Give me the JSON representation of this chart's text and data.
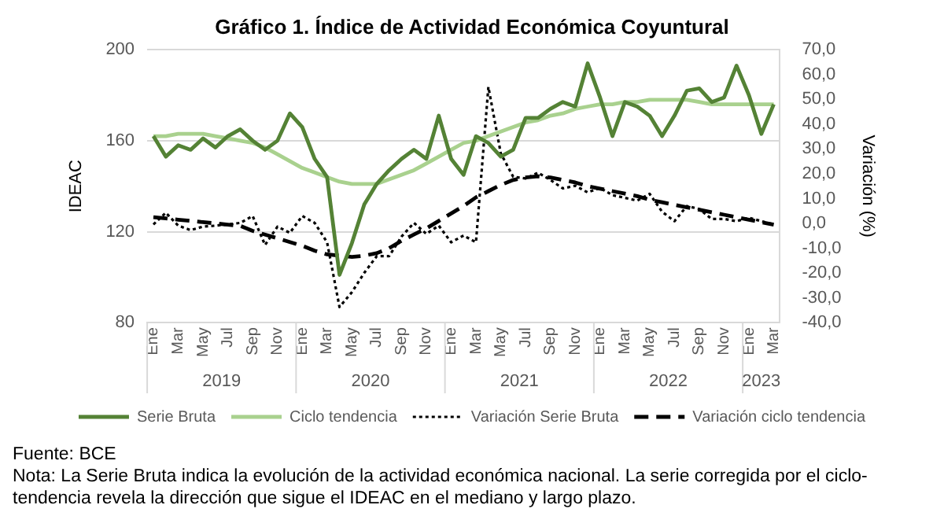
{
  "chart_data": {
    "type": "line",
    "title": "Gráfico 1. Índice de Actividad Económica Coyuntural",
    "ylabel": "IDEAC",
    "y2label": "Variación (%)",
    "categories": [
      "Ene",
      null,
      "Mar",
      null,
      "May",
      null,
      "Jul",
      null,
      "Sep",
      null,
      "Nov",
      null,
      "Ene",
      null,
      "Mar",
      null,
      "May",
      null,
      "Jul",
      null,
      "Sep",
      null,
      "Nov",
      null,
      "Ene",
      null,
      "Mar",
      null,
      "May",
      null,
      "Jul",
      null,
      "Sep",
      null,
      "Nov",
      null,
      "Ene",
      null,
      "Mar",
      null,
      "May",
      null,
      "Jul",
      null,
      "Sep",
      null,
      "Nov",
      null,
      "Ene",
      null,
      "Mar"
    ],
    "series": [
      {
        "name": "Serie Bruta",
        "color": "#548235",
        "line_style": "solid",
        "values": [
          162,
          153,
          158,
          156,
          161,
          157,
          162,
          165,
          160,
          156,
          160,
          172,
          166,
          152,
          144,
          101,
          115,
          132,
          141,
          147,
          152,
          156,
          152,
          171,
          152,
          145,
          162,
          159,
          153,
          156,
          170,
          170,
          174,
          177,
          175,
          194,
          179,
          162,
          177,
          175,
          171,
          162,
          171,
          182,
          183,
          177,
          179,
          193,
          180,
          163,
          176
        ]
      },
      {
        "name": "Ciclo tendencia",
        "color": "#a9d18e",
        "line_style": "solid",
        "values": [
          162,
          162,
          163,
          163,
          163,
          162,
          161,
          160,
          159,
          157,
          154,
          151,
          148,
          146,
          144,
          142,
          141,
          141,
          141,
          143,
          145,
          147,
          150,
          153,
          156,
          159,
          160,
          162,
          164,
          166,
          168,
          169,
          171,
          172,
          174,
          175,
          176,
          176,
          177,
          177,
          178,
          178,
          178,
          178,
          177,
          176,
          176,
          176,
          176,
          176,
          176
        ]
      },
      {
        "name": "Variación Serie Bruta",
        "color": "#000000",
        "line_style": "dotted",
        "axis": "y2",
        "values": [
          -0.4,
          4.3,
          -0.9,
          -2.7,
          -1.3,
          -0.9,
          -0.4,
          0.2,
          3,
          -8.7,
          -1.3,
          -3.8,
          3,
          0.2,
          -7.6,
          -33.7,
          -27.7,
          -19.9,
          -13.2,
          -13.2,
          -5.3,
          0.2,
          -4.2,
          -0.9,
          -7.6,
          -4.9,
          -7.6,
          55,
          28.2,
          18.8,
          18.1,
          20.4,
          17.5,
          14.1,
          15.2,
          12.5,
          14.3,
          11.4,
          10.3,
          9.2,
          11.9,
          4.7,
          0.9,
          7,
          5.8,
          1.8,
          1.8,
          0.9,
          2.3,
          0.9,
          -0.4
        ]
      },
      {
        "name": "Variación ciclo tendencia",
        "color": "#000000",
        "line_style": "dashed",
        "axis": "y2",
        "values": [
          2.5,
          2,
          1.5,
          1,
          0.5,
          0,
          -0.5,
          -1,
          -3,
          -4.5,
          -6,
          -7.5,
          -9,
          -11,
          -12.5,
          -13,
          -13.5,
          -13,
          -12,
          -10,
          -7,
          -4.5,
          -2,
          1,
          4,
          7,
          10.5,
          13,
          15.5,
          17.5,
          18.5,
          19,
          18.5,
          17.5,
          16.5,
          15,
          14,
          13,
          12,
          11,
          9.5,
          8.5,
          7.5,
          6.5,
          5.5,
          4.5,
          3.5,
          2.5,
          1.5,
          0.5,
          -0.5
        ]
      }
    ],
    "ylim": [
      80,
      200
    ],
    "yticks": [
      80,
      120,
      160,
      200
    ],
    "y2lim": [
      -40,
      70
    ],
    "y2ticks": [
      {
        "value": -40,
        "label": "-40,0"
      },
      {
        "value": -30,
        "label": "-30,0"
      },
      {
        "value": -20,
        "label": "-20,0"
      },
      {
        "value": -10,
        "label": "-10,0"
      },
      {
        "value": 0,
        "label": "0,0"
      },
      {
        "value": 10,
        "label": "10,0"
      },
      {
        "value": 20,
        "label": "20,0"
      },
      {
        "value": 30,
        "label": "30,0"
      },
      {
        "value": 40,
        "label": "40,0"
      },
      {
        "value": 50,
        "label": "50,0"
      },
      {
        "value": 60,
        "label": "60,0"
      },
      {
        "value": 70,
        "label": "70,0"
      }
    ],
    "grid": "y",
    "legend": "bottom",
    "marker": "none",
    "annotations": [
      "2019",
      "2020",
      "2021",
      "2022",
      "2023",
      "Fuente: BCE",
      "Nota: La Serie Bruta indica la evolución de la actividad económica nacional. La serie corregida por el ciclo-tendencia revela la dirección que sigue el IDEAC en el mediano y largo plazo."
    ]
  }
}
